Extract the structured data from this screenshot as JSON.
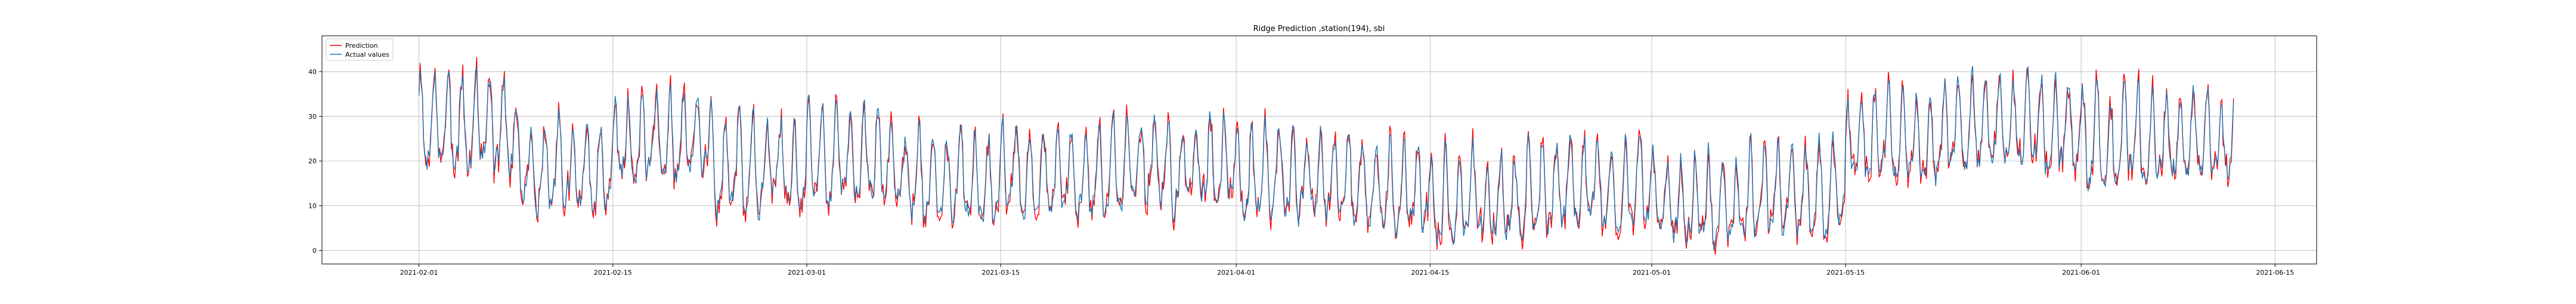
{
  "chart_data": {
    "type": "line",
    "title": "Ridge Prediction ,station(194), sbi",
    "xlabel": "",
    "ylabel": "",
    "x_start": "2021-02-01",
    "x_end": "2021-06-12",
    "xlim": [
      "2021-01-25",
      "2021-06-18"
    ],
    "ylim": [
      -3,
      48
    ],
    "x_tick_labels": [
      "2021-02-01",
      "2021-02-15",
      "2021-03-01",
      "2021-03-15",
      "2021-04-01",
      "2021-04-15",
      "2021-05-01",
      "2021-05-15",
      "2021-06-01",
      "2021-06-15"
    ],
    "y_ticks": [
      0,
      10,
      20,
      30,
      40
    ],
    "grid": true,
    "legend_position": "top-left",
    "series": [
      {
        "name": "Prediction",
        "color": "#ff0000"
      },
      {
        "name": "Actual values",
        "color": "#1f77b4"
      }
    ],
    "segment_means": [
      {
        "start": "2021-02-01",
        "end": "2021-02-08",
        "mean": 27
      },
      {
        "start": "2021-02-08",
        "end": "2021-02-15",
        "mean": 18
      },
      {
        "start": "2021-02-15",
        "end": "2021-02-22",
        "mean": 24
      },
      {
        "start": "2021-02-22",
        "end": "2021-03-01",
        "mean": 18
      },
      {
        "start": "2021-03-01",
        "end": "2021-03-08",
        "mean": 20
      },
      {
        "start": "2021-03-08",
        "end": "2021-03-15",
        "mean": 15
      },
      {
        "start": "2021-03-15",
        "end": "2021-03-22",
        "mean": 16
      },
      {
        "start": "2021-03-22",
        "end": "2021-04-01",
        "mean": 18
      },
      {
        "start": "2021-04-01",
        "end": "2021-04-08",
        "mean": 16
      },
      {
        "start": "2021-04-08",
        "end": "2021-04-15",
        "mean": 13
      },
      {
        "start": "2021-04-15",
        "end": "2021-04-22",
        "mean": 10
      },
      {
        "start": "2021-04-22",
        "end": "2021-05-01",
        "mean": 14
      },
      {
        "start": "2021-05-01",
        "end": "2021-05-08",
        "mean": 10
      },
      {
        "start": "2021-05-08",
        "end": "2021-05-15",
        "mean": 12
      },
      {
        "start": "2021-05-15",
        "end": "2021-05-22",
        "mean": 24
      },
      {
        "start": "2021-05-22",
        "end": "2021-06-01",
        "mean": 27
      },
      {
        "start": "2021-06-01",
        "end": "2021-06-08",
        "mean": 24
      },
      {
        "start": "2021-06-08",
        "end": "2021-06-12",
        "mean": 24
      }
    ],
    "segment_amplitude": 14,
    "y_max_observed": 46,
    "y_min_observed": 0
  }
}
